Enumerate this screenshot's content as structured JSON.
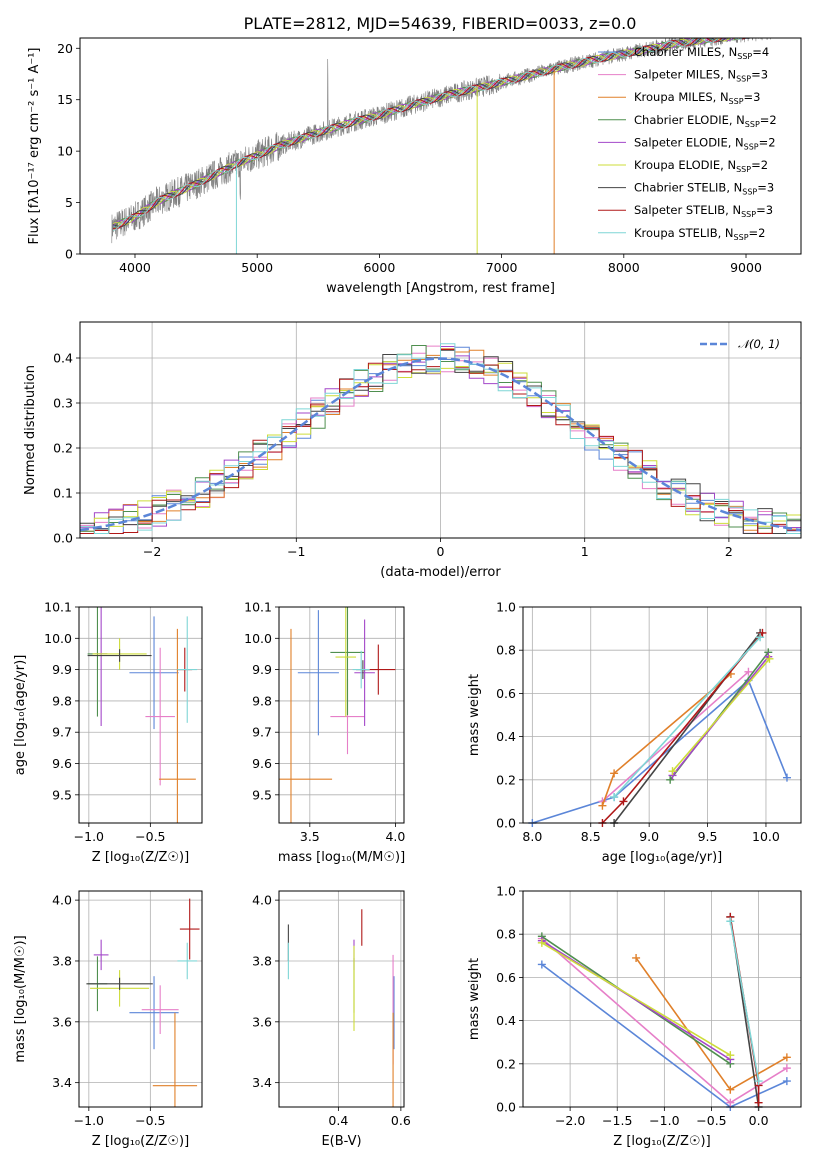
{
  "page": {
    "title": "PLATE=2812, MJD=54639, FIBERID=0033, z=0.0"
  },
  "colors": {
    "chabrier_miles": "#5b86d8",
    "salpeter_miles": "#e67fc8",
    "kroupa_miles": "#e0802a",
    "chabrier_elodie": "#4f8f4f",
    "salpeter_elodie": "#a347c9",
    "kroupa_elodie": "#cddc3a",
    "chabrier_stelib": "#444444",
    "salpeter_stelib": "#b01818",
    "kroupa_stelib": "#7fd6d6",
    "normal_curve": "#5b86d8",
    "data_spectrum": "#7f7f7f"
  },
  "chart_data": [
    {
      "id": "spectrum",
      "type": "line",
      "title": "PLATE=2812, MJD=54639, FIBERID=0033, z=0.0",
      "xlabel": "wavelength [Angstrom, rest frame]",
      "ylabel": "Flux [fλ10⁻¹⁷ erg cm⁻² s⁻¹ A⁻¹]",
      "xlim": [
        3550,
        9450
      ],
      "ylim": [
        0,
        21
      ],
      "xticks": [
        "4000",
        "5000",
        "6000",
        "7000",
        "8000",
        "9000"
      ],
      "yticks": [
        "0",
        "5",
        "10",
        "15",
        "20"
      ],
      "grid": false,
      "legend_position": "right",
      "legend": [
        {
          "label": "Chabrier MILES, N",
          "sub": "SSP",
          "suffix": "=4"
        },
        {
          "label": "Salpeter MILES, N",
          "sub": "SSP",
          "suffix": "=3"
        },
        {
          "label": "Kroupa MILES, N",
          "sub": "SSP",
          "suffix": "=3"
        },
        {
          "label": "Chabrier ELODIE, N",
          "sub": "SSP",
          "suffix": "=2"
        },
        {
          "label": "Salpeter ELODIE, N",
          "sub": "SSP",
          "suffix": "=2"
        },
        {
          "label": "Kroupa ELODIE, N",
          "sub": "SSP",
          "suffix": "=2"
        },
        {
          "label": "Chabrier STELIB, N",
          "sub": "SSP",
          "suffix": "=3"
        },
        {
          "label": "Salpeter STELIB, N",
          "sub": "SSP",
          "suffix": "=3"
        },
        {
          "label": "Kroupa STELIB, N",
          "sub": "SSP",
          "suffix": "=2"
        }
      ],
      "continuum": {
        "x": [
          3800,
          4000,
          4200,
          4500,
          4800,
          5000,
          5200,
          5500,
          5800,
          6000,
          6300,
          6600,
          6900,
          7200,
          7500,
          7800,
          8100,
          8400,
          8700,
          9000,
          9200
        ],
        "y": [
          2.5,
          3.6,
          5.2,
          6.8,
          8.6,
          9.6,
          10.6,
          11.8,
          12.9,
          13.5,
          14.6,
          15.6,
          16.4,
          17.3,
          18.2,
          19.0,
          19.7,
          20.4,
          20.9,
          21.3,
          21.6
        ]
      }
    },
    {
      "id": "residual-histogram",
      "type": "area",
      "xlabel": "(data-model)/error",
      "ylabel": "Normed distribution",
      "xlim": [
        -2.5,
        2.5
      ],
      "ylim": [
        0,
        0.48
      ],
      "xticks": [
        "−2",
        "−1",
        "0",
        "1",
        "2"
      ],
      "yticks": [
        "0.0",
        "0.1",
        "0.2",
        "0.3",
        "0.4"
      ],
      "grid": true,
      "legend_position": "top-right",
      "legend_label": "𝒩(0, 1)",
      "normal": {
        "mu": 0,
        "sigma": 1
      }
    },
    {
      "id": "age-vs-Z",
      "type": "scatter",
      "xlabel": "Z [log₁₀(Z/Z☉)]",
      "ylabel": "age  [log₁₀(age/yr)]",
      "xlim": [
        -1.08,
        -0.08
      ],
      "ylim": [
        9.41,
        10.1
      ],
      "xticks": [
        "−1.0",
        "−0.5"
      ],
      "yticks": [
        "9.5",
        "9.6",
        "9.7",
        "9.8",
        "9.9",
        "10.0",
        "10.1"
      ],
      "grid": true,
      "points": [
        {
          "series": "chabrier_miles",
          "x": -0.47,
          "y": 9.89,
          "xerr": 0.2,
          "yerr": 0.18
        },
        {
          "series": "salpeter_miles",
          "x": -0.42,
          "y": 9.75,
          "xerr": 0.12,
          "yerr": 0.22
        },
        {
          "series": "kroupa_miles",
          "x": -0.28,
          "y": 9.55,
          "xerr": 0.15,
          "yerr": 0.48
        },
        {
          "series": "chabrier_elodie",
          "x": -0.93,
          "y": 9.95,
          "xerr": 0.08,
          "yerr": 0.2
        },
        {
          "series": "salpeter_elodie",
          "x": -0.9,
          "y": 9.95,
          "xerr": 0.05,
          "yerr": 0.23
        },
        {
          "series": "kroupa_elodie",
          "x": -0.75,
          "y": 9.95,
          "xerr": 0.22,
          "yerr": 0.05
        },
        {
          "series": "chabrier_stelib",
          "x": -0.75,
          "y": 9.945,
          "xerr": 0.26,
          "yerr": 0.02
        },
        {
          "series": "salpeter_stelib",
          "x": -0.22,
          "y": 9.9,
          "xerr": 0.06,
          "yerr": 0.07
        },
        {
          "series": "kroupa_stelib",
          "x": -0.2,
          "y": 9.9,
          "xerr": 0.08,
          "yerr": 0.17
        }
      ]
    },
    {
      "id": "age-vs-mass",
      "type": "scatter",
      "xlabel": "mass [log₁₀(M/M☉)]",
      "xlim": [
        3.32,
        4.05
      ],
      "ylim": [
        9.41,
        10.1
      ],
      "xticks": [
        "3.5",
        "4.0"
      ],
      "yticks": [
        "9.5",
        "9.6",
        "9.7",
        "9.8",
        "9.9",
        "10.0",
        "10.1"
      ],
      "grid": true,
      "points": [
        {
          "series": "chabrier_miles",
          "x": 3.55,
          "y": 9.89,
          "xerr": 0.12,
          "yerr": 0.2
        },
        {
          "series": "salpeter_miles",
          "x": 3.72,
          "y": 9.75,
          "xerr": 0.1,
          "yerr": 0.12
        },
        {
          "series": "kroupa_miles",
          "x": 3.39,
          "y": 9.55,
          "xerr": 0.24,
          "yerr": 0.48
        },
        {
          "series": "chabrier_elodie",
          "x": 3.72,
          "y": 9.955,
          "xerr": 0.1,
          "yerr": 0.2
        },
        {
          "series": "salpeter_elodie",
          "x": 3.82,
          "y": 9.89,
          "xerr": 0.06,
          "yerr": 0.17
        },
        {
          "series": "kroupa_elodie",
          "x": 3.71,
          "y": 9.94,
          "xerr": 0.06,
          "yerr": 0.19
        },
        {
          "series": "chabrier_stelib",
          "x": 3.81,
          "y": 9.9,
          "xerr": 0.04,
          "yerr": 0.03
        },
        {
          "series": "salpeter_stelib",
          "x": 3.9,
          "y": 9.9,
          "xerr": 0.1,
          "yerr": 0.08
        },
        {
          "series": "kroupa_stelib",
          "x": 3.8,
          "y": 9.9,
          "xerr": 0.05,
          "yerr": 0.06
        }
      ]
    },
    {
      "id": "mass-weight-vs-age",
      "type": "line",
      "xlabel": "age  [log₁₀(age/yr)]",
      "ylabel": "mass weight",
      "xlim": [
        7.92,
        10.3
      ],
      "ylim": [
        0,
        1
      ],
      "xticks": [
        "8.0",
        "8.5",
        "9.0",
        "9.5",
        "10.0"
      ],
      "yticks": [
        "0.0",
        "0.2",
        "0.4",
        "0.6",
        "0.8",
        "1.0"
      ],
      "grid": true,
      "series": [
        {
          "series": "chabrier_miles",
          "x": [
            8.0,
            8.7,
            9.85,
            10.18
          ],
          "y": [
            0.0,
            0.12,
            0.66,
            0.21
          ]
        },
        {
          "series": "salpeter_miles",
          "x": [
            8.6,
            9.85
          ],
          "y": [
            0.1,
            0.7
          ]
        },
        {
          "series": "kroupa_miles",
          "x": [
            8.6,
            8.7,
            9.7
          ],
          "y": [
            0.08,
            0.23,
            0.69
          ]
        },
        {
          "series": "chabrier_elodie",
          "x": [
            9.18,
            10.02
          ],
          "y": [
            0.2,
            0.79
          ]
        },
        {
          "series": "salpeter_elodie",
          "x": [
            9.2,
            10.02
          ],
          "y": [
            0.22,
            0.77
          ]
        },
        {
          "series": "kroupa_elodie",
          "x": [
            9.2,
            10.03
          ],
          "y": [
            0.24,
            0.76
          ]
        },
        {
          "series": "chabrier_stelib",
          "x": [
            8.7,
            9.95
          ],
          "y": [
            0.0,
            0.88
          ]
        },
        {
          "series": "salpeter_stelib",
          "x": [
            8.6,
            8.78,
            9.97
          ],
          "y": [
            0.0,
            0.1,
            0.88
          ]
        },
        {
          "series": "kroupa_stelib",
          "x": [
            8.7,
            9.95
          ],
          "y": [
            0.12,
            0.86
          ]
        }
      ]
    },
    {
      "id": "mass-vs-Z",
      "type": "scatter",
      "xlabel": "Z [log₁₀(Z/Z☉)]",
      "ylabel": "mass [log₁₀(M/M☉)]",
      "xlim": [
        -1.08,
        -0.08
      ],
      "ylim": [
        3.32,
        4.03
      ],
      "xticks": [
        "−1.0",
        "−0.5"
      ],
      "yticks": [
        "3.4",
        "3.6",
        "3.8",
        "4.0"
      ],
      "grid": true,
      "points": [
        {
          "series": "chabrier_miles",
          "x": -0.47,
          "y": 3.63,
          "xerr": 0.2,
          "yerr": 0.12
        },
        {
          "series": "salpeter_miles",
          "x": -0.42,
          "y": 3.64,
          "xerr": 0.15,
          "yerr": 0.08
        },
        {
          "series": "kroupa_miles",
          "x": -0.3,
          "y": 3.39,
          "xerr": 0.18,
          "yerr": 0.24
        },
        {
          "series": "chabrier_elodie",
          "x": -0.93,
          "y": 3.725,
          "xerr": 0.08,
          "yerr": 0.09
        },
        {
          "series": "salpeter_elodie",
          "x": -0.9,
          "y": 3.82,
          "xerr": 0.06,
          "yerr": 0.05
        },
        {
          "series": "kroupa_elodie",
          "x": -0.75,
          "y": 3.71,
          "xerr": 0.24,
          "yerr": 0.06
        },
        {
          "series": "chabrier_stelib",
          "x": -0.75,
          "y": 3.725,
          "xerr": 0.27,
          "yerr": 0.02
        },
        {
          "series": "salpeter_stelib",
          "x": -0.18,
          "y": 3.905,
          "xerr": 0.08,
          "yerr": 0.1
        },
        {
          "series": "kroupa_stelib",
          "x": -0.2,
          "y": 3.8,
          "xerr": 0.08,
          "yerr": 0.06
        }
      ]
    },
    {
      "id": "mass-vs-ebv",
      "type": "scatter",
      "xlabel": "E(B-V)",
      "xlim": [
        0.21,
        0.61
      ],
      "ylim": [
        3.32,
        4.03
      ],
      "xticks": [
        "0.4",
        "0.6"
      ],
      "yticks": [
        "3.4",
        "3.6",
        "3.8",
        "4.0"
      ],
      "grid": true,
      "points": [
        {
          "series": "chabrier_miles",
          "x": 0.578,
          "y": 3.63,
          "yerr": 0.12
        },
        {
          "series": "salpeter_miles",
          "x": 0.575,
          "y": 3.64,
          "yerr": 0.18
        },
        {
          "series": "kroupa_miles",
          "x": 0.575,
          "y": 3.39,
          "yerr": 0.24
        },
        {
          "series": "chabrier_elodie",
          "x": 0.45,
          "y": 3.72,
          "yerr": 0.09
        },
        {
          "series": "salpeter_elodie",
          "x": 0.45,
          "y": 3.82,
          "yerr": 0.05
        },
        {
          "series": "kroupa_elodie",
          "x": 0.45,
          "y": 3.71,
          "yerr": 0.14
        },
        {
          "series": "chabrier_stelib",
          "x": 0.24,
          "y": 3.86,
          "yerr": 0.06
        },
        {
          "series": "salpeter_stelib",
          "x": 0.475,
          "y": 3.91,
          "yerr": 0.06
        },
        {
          "series": "kroupa_stelib",
          "x": 0.24,
          "y": 3.8,
          "yerr": 0.06
        }
      ]
    },
    {
      "id": "mass-weight-vs-Z",
      "type": "line",
      "xlabel": "Z [log₁₀(Z/Z☉)]",
      "ylabel": "mass weight",
      "xlim": [
        -2.5,
        0.45
      ],
      "ylim": [
        0,
        1
      ],
      "xticks": [
        "−2.0",
        "−1.5",
        "−1.0",
        "−0.5",
        "0.0"
      ],
      "yticks": [
        "0.0",
        "0.2",
        "0.4",
        "0.6",
        "0.8",
        "1.0"
      ],
      "grid": true,
      "series": [
        {
          "series": "chabrier_miles",
          "x": [
            -2.3,
            -0.3,
            0.3
          ],
          "y": [
            0.66,
            0.0,
            0.12
          ]
        },
        {
          "series": "salpeter_miles",
          "x": [
            -2.3,
            -0.3,
            0.3
          ],
          "y": [
            0.78,
            0.02,
            0.18
          ]
        },
        {
          "series": "kroupa_miles",
          "x": [
            -1.3,
            -0.3,
            0.3
          ],
          "y": [
            0.69,
            0.08,
            0.23
          ]
        },
        {
          "series": "chabrier_elodie",
          "x": [
            -2.3,
            -0.3
          ],
          "y": [
            0.79,
            0.2
          ]
        },
        {
          "series": "salpeter_elodie",
          "x": [
            -2.3,
            -0.3
          ],
          "y": [
            0.77,
            0.22
          ]
        },
        {
          "series": "kroupa_elodie",
          "x": [
            -2.3,
            -0.3
          ],
          "y": [
            0.76,
            0.24
          ]
        },
        {
          "series": "chabrier_stelib",
          "x": [
            -0.3,
            0.0
          ],
          "y": [
            0.88,
            0.0
          ]
        },
        {
          "series": "salpeter_stelib",
          "x": [
            -0.3,
            0.0,
            0.0
          ],
          "y": [
            0.88,
            0.1,
            0.02
          ]
        },
        {
          "series": "kroupa_stelib",
          "x": [
            -0.3,
            0.0
          ],
          "y": [
            0.86,
            0.12
          ]
        }
      ]
    }
  ]
}
